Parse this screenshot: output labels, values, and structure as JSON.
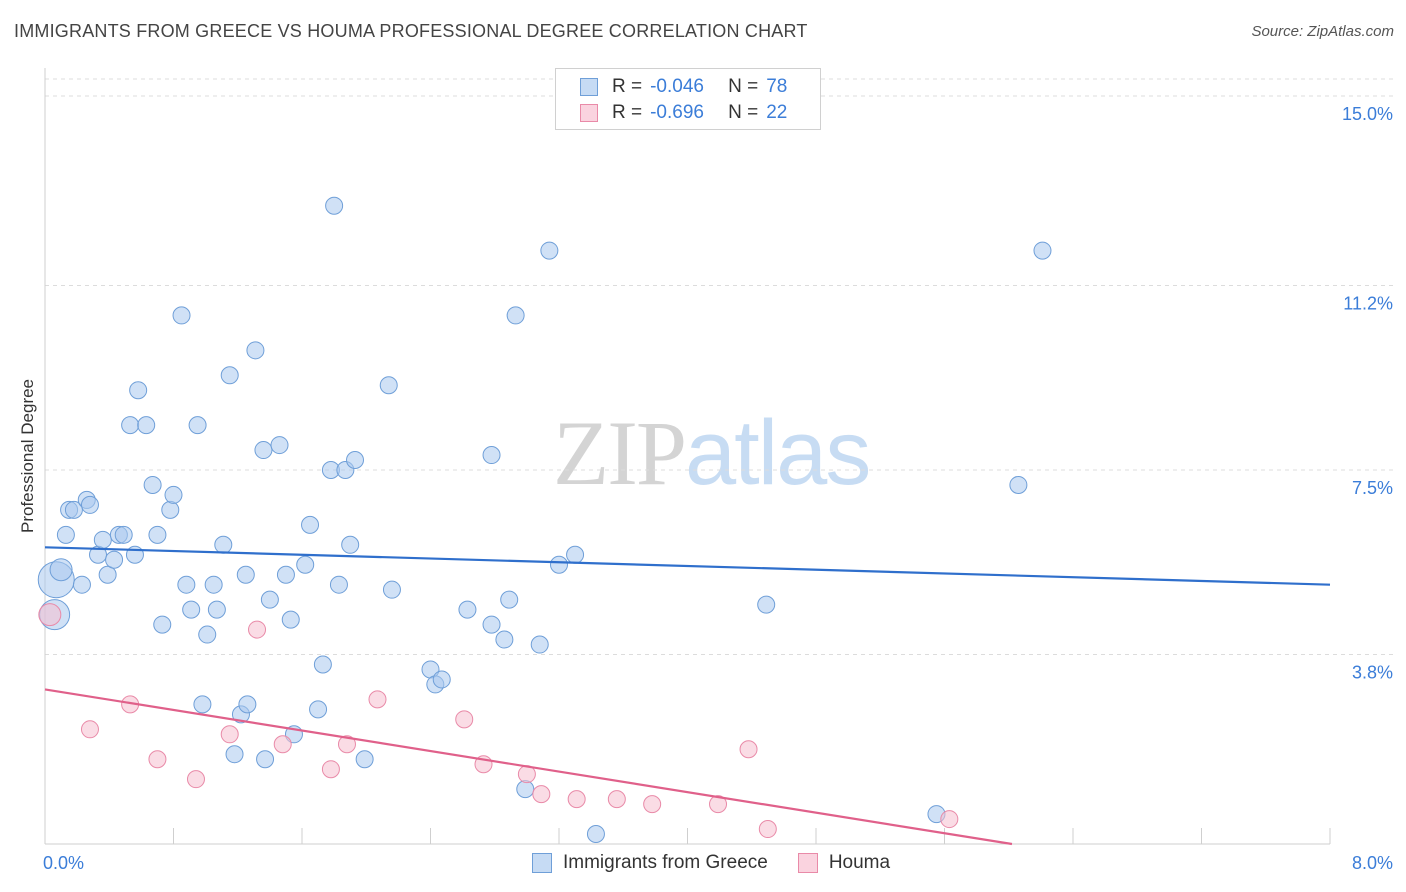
{
  "header": {
    "title": "IMMIGRANTS FROM GREECE VS HOUMA PROFESSIONAL DEGREE CORRELATION CHART",
    "source": "Source: ZipAtlas.com"
  },
  "watermark": {
    "part1": "ZIP",
    "part2": "atlas"
  },
  "legend": {
    "rows": [
      {
        "r_label": "R =",
        "r_value": "-0.046",
        "n_label": "N =",
        "n_value": "78",
        "color": "#a9c8ee",
        "border": "#6f9fd8"
      },
      {
        "r_label": "R =",
        "r_value": "-0.696",
        "n_label": "N =",
        "n_value": "22",
        "color": "#f6bfd0",
        "border": "#e98aa8"
      }
    ]
  },
  "bottom_legend": {
    "items": [
      {
        "label": "Immigrants from Greece",
        "color": "#a9c8ee",
        "border": "#6f9fd8"
      },
      {
        "label": "Houma",
        "color": "#f6bfd0",
        "border": "#e98aa8"
      }
    ]
  },
  "chart_data": {
    "type": "scatter",
    "title": "IMMIGRANTS FROM GREECE VS HOUMA PROFESSIONAL DEGREE CORRELATION CHART",
    "ylabel": "Professional Degree",
    "xlabel": "",
    "xlim": [
      0,
      8.0
    ],
    "ylim": [
      0,
      15.0
    ],
    "x_tick_labels": [
      "0.0%",
      "8.0%"
    ],
    "y_ticks": [
      3.8,
      7.5,
      11.2,
      15.0
    ],
    "y_tick_labels": [
      "3.8%",
      "7.5%",
      "11.2%",
      "15.0%"
    ],
    "grid": "horizontal dashed",
    "legend_position": "top-center",
    "series": [
      {
        "name": "Immigrants from Greece",
        "color": "#6f9fd8",
        "fill": "#a9c8ee",
        "line_color": "#2f6fcc",
        "trend": {
          "x0": 0.0,
          "y0": 5.95,
          "x1": 8.0,
          "y1": 5.2
        },
        "points": [
          [
            0.07,
            5.3,
            16
          ],
          [
            0.06,
            4.6,
            14
          ],
          [
            0.1,
            5.5,
            12
          ],
          [
            0.13,
            6.2,
            10
          ],
          [
            0.15,
            6.7,
            10
          ],
          [
            0.18,
            6.7,
            10
          ],
          [
            0.23,
            5.2,
            10
          ],
          [
            0.26,
            6.9,
            10
          ],
          [
            0.28,
            6.8,
            10
          ],
          [
            0.33,
            5.8,
            10
          ],
          [
            0.36,
            6.1,
            10
          ],
          [
            0.39,
            5.4,
            10
          ],
          [
            0.43,
            5.7,
            10
          ],
          [
            0.46,
            6.2,
            10
          ],
          [
            0.49,
            6.2,
            10
          ],
          [
            0.53,
            8.4,
            10
          ],
          [
            0.56,
            5.8,
            10
          ],
          [
            0.58,
            9.1,
            10
          ],
          [
            0.63,
            8.4,
            10
          ],
          [
            0.67,
            7.2,
            10
          ],
          [
            0.7,
            6.2,
            10
          ],
          [
            0.73,
            4.4,
            10
          ],
          [
            0.78,
            6.7,
            10
          ],
          [
            0.8,
            7.0,
            10
          ],
          [
            0.85,
            10.6,
            10
          ],
          [
            0.88,
            5.2,
            10
          ],
          [
            0.91,
            4.7,
            10
          ],
          [
            0.95,
            8.4,
            10
          ],
          [
            0.98,
            2.8,
            10
          ],
          [
            1.01,
            4.2,
            10
          ],
          [
            1.05,
            5.2,
            10
          ],
          [
            1.07,
            4.7,
            10
          ],
          [
            1.11,
            6.0,
            10
          ],
          [
            1.15,
            9.4,
            10
          ],
          [
            1.18,
            1.8,
            10
          ],
          [
            1.22,
            2.6,
            10
          ],
          [
            1.25,
            5.4,
            10
          ],
          [
            1.26,
            2.8,
            10
          ],
          [
            1.31,
            9.9,
            10
          ],
          [
            1.36,
            7.9,
            10
          ],
          [
            1.37,
            1.7,
            10
          ],
          [
            1.4,
            4.9,
            10
          ],
          [
            1.46,
            8.0,
            10
          ],
          [
            1.5,
            5.4,
            10
          ],
          [
            1.53,
            4.5,
            10
          ],
          [
            1.55,
            2.2,
            10
          ],
          [
            1.62,
            5.6,
            10
          ],
          [
            1.65,
            6.4,
            10
          ],
          [
            1.7,
            2.7,
            10
          ],
          [
            1.73,
            3.6,
            10
          ],
          [
            1.78,
            7.5,
            10
          ],
          [
            1.8,
            12.8,
            10
          ],
          [
            1.83,
            5.2,
            10
          ],
          [
            1.87,
            7.5,
            10
          ],
          [
            1.9,
            6.0,
            10
          ],
          [
            1.93,
            7.7,
            10
          ],
          [
            1.99,
            1.7,
            10
          ],
          [
            2.14,
            9.2,
            10
          ],
          [
            2.16,
            5.1,
            10
          ],
          [
            2.4,
            3.5,
            10
          ],
          [
            2.43,
            3.2,
            10
          ],
          [
            2.47,
            3.3,
            10
          ],
          [
            2.63,
            4.7,
            10
          ],
          [
            2.78,
            7.8,
            10
          ],
          [
            2.78,
            4.4,
            10
          ],
          [
            2.86,
            4.1,
            10
          ],
          [
            2.89,
            4.9,
            10
          ],
          [
            2.93,
            10.6,
            10
          ],
          [
            2.99,
            1.1,
            10
          ],
          [
            3.08,
            4.0,
            10
          ],
          [
            3.14,
            11.9,
            10
          ],
          [
            3.2,
            5.6,
            10
          ],
          [
            3.3,
            5.8,
            10
          ],
          [
            3.43,
            0.2,
            10
          ],
          [
            4.49,
            4.8,
            10
          ],
          [
            5.55,
            0.6,
            10
          ],
          [
            6.06,
            7.2,
            10
          ],
          [
            6.21,
            11.9,
            10
          ]
        ]
      },
      {
        "name": "Houma",
        "color": "#e98aa8",
        "fill": "#f6bfd0",
        "line_color": "#e0608a",
        "trend": {
          "x0": 0.0,
          "y0": 3.1,
          "x1": 6.02,
          "y1": 0.0
        },
        "points": [
          [
            0.03,
            4.6,
            12
          ],
          [
            0.28,
            2.3,
            10
          ],
          [
            0.53,
            2.8,
            10
          ],
          [
            0.7,
            1.7,
            10
          ],
          [
            0.94,
            1.3,
            10
          ],
          [
            1.15,
            2.2,
            10
          ],
          [
            1.32,
            4.3,
            10
          ],
          [
            1.48,
            2.0,
            10
          ],
          [
            1.78,
            1.5,
            10
          ],
          [
            1.88,
            2.0,
            10
          ],
          [
            2.07,
            2.9,
            10
          ],
          [
            2.61,
            2.5,
            10
          ],
          [
            2.73,
            1.6,
            10
          ],
          [
            3.0,
            1.4,
            10
          ],
          [
            3.09,
            1.0,
            10
          ],
          [
            3.31,
            0.9,
            10
          ],
          [
            3.56,
            0.9,
            10
          ],
          [
            3.78,
            0.8,
            10
          ],
          [
            4.19,
            0.8,
            10
          ],
          [
            4.38,
            1.9,
            10
          ],
          [
            4.5,
            0.3,
            10
          ],
          [
            5.63,
            0.5,
            10
          ]
        ]
      }
    ]
  }
}
